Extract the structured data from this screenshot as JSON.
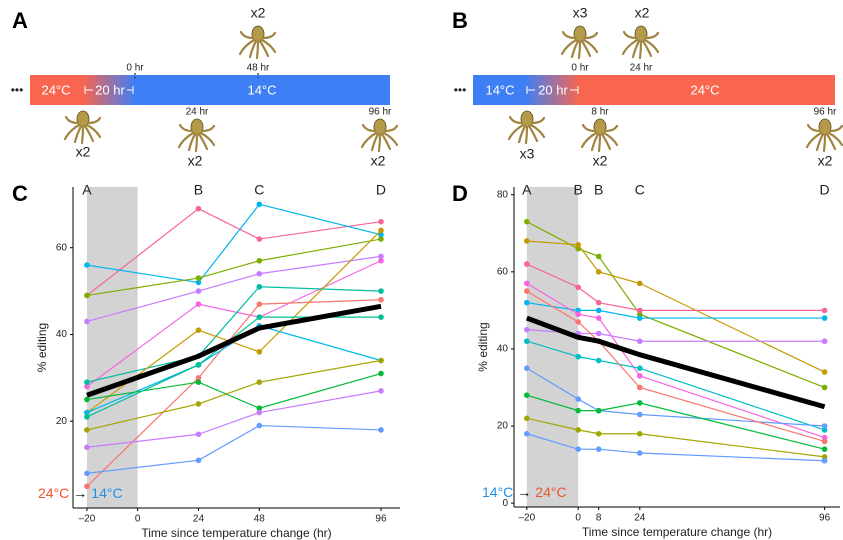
{
  "panel_a": {
    "letter": "A",
    "ellipsis": "•••",
    "start_temp": "24°C",
    "transition": "20 hr",
    "end_temp": "14°C",
    "time_0": "0 hr",
    "time_48": "48 hr",
    "time_24": "24 hr",
    "time_96": "96 hr",
    "count_48": "x2",
    "count_start": "x2",
    "count_24": "x2",
    "count_96": "x2"
  },
  "panel_b": {
    "letter": "B",
    "ellipsis": "•••",
    "start_temp": "14°C",
    "transition": "20 hr",
    "end_temp": "24°C",
    "time_0": "0 hr",
    "time_24": "24 hr",
    "time_8": "8 hr",
    "time_96": "96 hr",
    "count_0": "x3",
    "count_24": "x2",
    "count_start": "x3",
    "count_8": "x2",
    "count_96": "x2"
  },
  "chart_data": [
    {
      "type": "line",
      "panel": "C",
      "x_label": "Time since temperature change (hr)",
      "y_label": "% editing",
      "xlim": [
        -25.5,
        103.5
      ],
      "ylim": [
        0,
        74
      ],
      "xticks": [
        {
          "value": -20,
          "label": "–20"
        },
        0,
        24,
        48,
        96
      ],
      "yticks": [
        20,
        40,
        60
      ],
      "shade": [
        -20,
        0
      ],
      "stages": [
        {
          "text": "A",
          "x": -20
        },
        {
          "text": "B",
          "x": 24
        },
        {
          "text": "C",
          "x": 48
        },
        {
          "text": "D",
          "x": 96
        }
      ],
      "annotation": [
        {
          "text": "24°C",
          "color": "#f0532d"
        },
        {
          "text": "→",
          "color": "#000000"
        },
        {
          "text": "14°C",
          "color": "#1e90e8"
        }
      ],
      "x": [
        -20,
        24,
        48,
        96
      ],
      "series": [
        {
          "color": "#f8639a",
          "values": [
            49,
            69,
            62,
            66
          ]
        },
        {
          "color": "#00b6eb",
          "values": [
            56,
            52,
            70,
            63
          ]
        },
        {
          "color": "#7cae00",
          "values": [
            49,
            53,
            57,
            62
          ]
        },
        {
          "color": "#c77cff",
          "values": [
            43,
            50,
            54,
            58
          ]
        },
        {
          "color": "#f564e3",
          "values": [
            28,
            47,
            44,
            57
          ]
        },
        {
          "color": "#00bfa0",
          "values": [
            29,
            35,
            51,
            50
          ]
        },
        {
          "color": "#c49a00",
          "values": [
            22,
            41,
            36,
            64
          ]
        },
        {
          "color": "#f8766d",
          "values": [
            5,
            30,
            47,
            48
          ]
        },
        {
          "color": "#00b6eb",
          "values": [
            22,
            33,
            42,
            34
          ]
        },
        {
          "color": "#00ba38",
          "values": [
            25,
            29,
            23,
            31
          ]
        },
        {
          "color": "#a3a500",
          "values": [
            18,
            24,
            29,
            34
          ]
        },
        {
          "color": "#c77cff",
          "values": [
            14,
            17,
            22,
            27
          ]
        },
        {
          "color": "#619cff",
          "values": [
            8,
            11,
            19,
            18
          ]
        },
        {
          "color": "#00c094",
          "values": [
            21,
            33,
            44,
            44
          ]
        },
        {
          "color": "#000000",
          "width": 5,
          "values": [
            26,
            35,
            41.5,
            46.5
          ]
        }
      ]
    },
    {
      "type": "line",
      "panel": "D",
      "x_label": "Time since temperature change (hr)",
      "y_label": "% editing",
      "xlim": [
        -25,
        102
      ],
      "ylim": [
        -1,
        82
      ],
      "xticks": [
        {
          "value": -20,
          "label": "–20"
        },
        0,
        8,
        24,
        96
      ],
      "yticks": [
        0,
        20,
        40,
        60,
        80
      ],
      "shade": [
        -20,
        0
      ],
      "stages": [
        {
          "text": "A",
          "x": -20
        },
        {
          "text": "B",
          "x": 0
        },
        {
          "text": "B",
          "x": 8
        },
        {
          "text": "C",
          "x": 24
        },
        {
          "text": "D",
          "x": 96
        }
      ],
      "annotation": [
        {
          "text": "14°C",
          "color": "#1e90e8"
        },
        {
          "text": "→",
          "color": "#000000"
        },
        {
          "text": "24°C",
          "color": "#f0532d"
        }
      ],
      "x": [
        -20,
        0,
        8,
        24,
        96
      ],
      "series": [
        {
          "color": "#7cae00",
          "values": [
            73,
            66,
            64,
            49,
            30
          ]
        },
        {
          "color": "#c49a00",
          "values": [
            68,
            67,
            60,
            57,
            34
          ]
        },
        {
          "color": "#f8639a",
          "values": [
            62,
            56,
            52,
            50,
            50
          ]
        },
        {
          "color": "#00b6eb",
          "values": [
            52,
            50,
            50,
            48,
            48
          ]
        },
        {
          "color": "#f564e3",
          "values": [
            57,
            49,
            48,
            33,
            17
          ]
        },
        {
          "color": "#c77cff",
          "values": [
            45,
            44,
            44,
            42,
            42
          ]
        },
        {
          "color": "#00bfc4",
          "values": [
            42,
            38,
            37,
            35,
            19
          ]
        },
        {
          "color": "#619cff",
          "values": [
            35,
            27,
            24,
            23,
            20
          ]
        },
        {
          "color": "#00ba38",
          "values": [
            28,
            24,
            24,
            26,
            14
          ]
        },
        {
          "color": "#a3a500",
          "values": [
            22,
            19,
            18,
            18,
            12
          ]
        },
        {
          "color": "#619cff",
          "values": [
            18,
            14,
            14,
            13,
            11
          ]
        },
        {
          "color": "#f8766d",
          "values": [
            55,
            47,
            42,
            30,
            16
          ]
        },
        {
          "color": "#000000",
          "width": 5,
          "values": [
            48,
            43,
            42,
            38.5,
            25
          ]
        }
      ]
    }
  ]
}
